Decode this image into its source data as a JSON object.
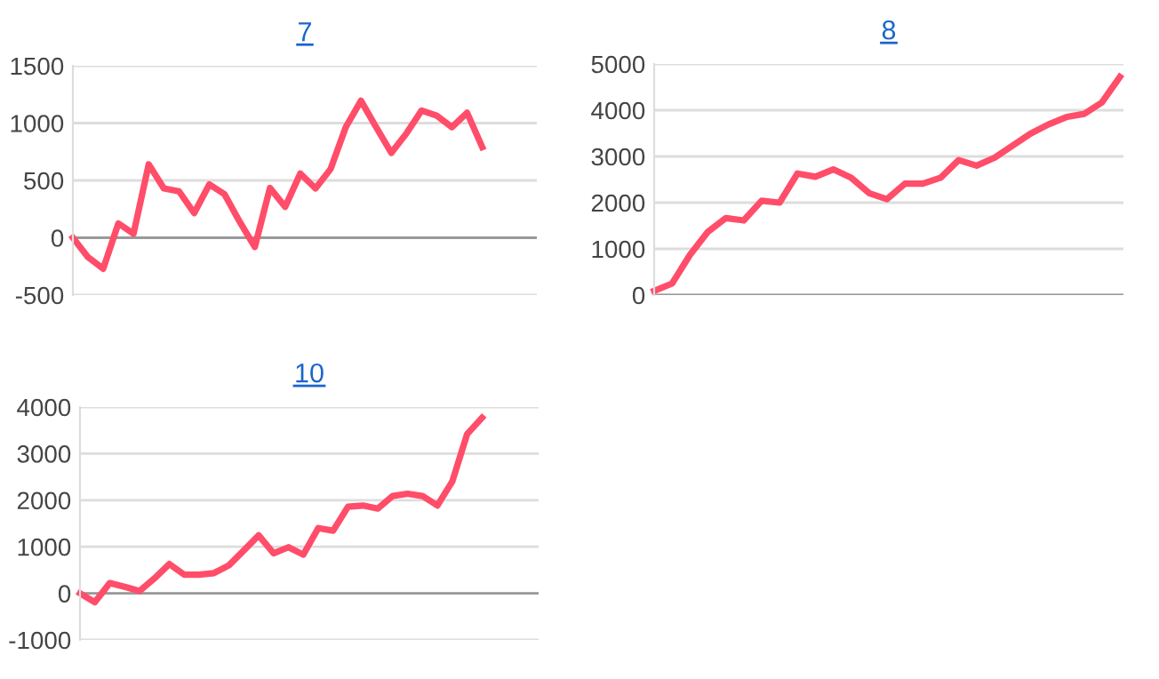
{
  "chart_data": [
    {
      "type": "line",
      "title": "7",
      "categories": [
        null,
        null,
        null,
        null,
        null,
        null,
        null,
        null,
        null,
        null,
        null,
        null,
        null,
        null,
        null,
        null,
        null,
        null,
        null,
        null,
        null,
        null,
        null,
        null,
        null,
        null,
        null,
        null
      ],
      "series": [
        {
          "color": "#ff4d6a",
          "values": [
            0,
            -170,
            -270,
            125,
            35,
            640,
            430,
            405,
            215,
            465,
            380,
            140,
            -80,
            435,
            270,
            560,
            430,
            600,
            965,
            1195,
            965,
            740,
            910,
            1110,
            1065,
            965,
            1090,
            790
          ]
        }
      ],
      "ylim": [
        -500,
        1500
      ],
      "yticks": [
        -500,
        0,
        500,
        1000,
        1500
      ],
      "grid": "y",
      "tick_labels": "y",
      "marker": "none",
      "line_style": "solid"
    },
    {
      "type": "line",
      "title": "8",
      "categories": [
        null,
        null,
        null,
        null,
        null,
        null,
        null,
        null,
        null,
        null,
        null,
        null,
        null,
        null,
        null,
        null,
        null,
        null,
        null,
        null,
        null,
        null,
        null,
        null,
        null,
        null,
        null
      ],
      "series": [
        {
          "color": "#ff4d6a",
          "values": [
            90,
            250,
            870,
            1370,
            1665,
            1615,
            2040,
            2000,
            2630,
            2560,
            2720,
            2540,
            2205,
            2075,
            2410,
            2410,
            2540,
            2920,
            2800,
            2970,
            3230,
            3490,
            3690,
            3850,
            3920,
            4170,
            4720
          ]
        }
      ],
      "ylim": [
        0,
        5000
      ],
      "yticks": [
        0,
        1000,
        2000,
        3000,
        4000,
        5000
      ],
      "grid": "y",
      "tick_labels": "y",
      "marker": "none",
      "line_style": "solid"
    },
    {
      "type": "line",
      "title": "10",
      "categories": [
        null,
        null,
        null,
        null,
        null,
        null,
        null,
        null,
        null,
        null,
        null,
        null,
        null,
        null,
        null,
        null,
        null,
        null,
        null,
        null,
        null,
        null,
        null,
        null,
        null,
        null,
        null,
        null
      ],
      "series": [
        {
          "color": "#ff4d6a",
          "values": [
            0,
            -190,
            220,
            140,
            50,
            320,
            630,
            400,
            400,
            435,
            600,
            920,
            1245,
            860,
            990,
            830,
            1400,
            1345,
            1860,
            1885,
            1820,
            2090,
            2140,
            2090,
            1885,
            2400,
            3420,
            3770
          ]
        }
      ],
      "ylim": [
        -1000,
        4000
      ],
      "yticks": [
        -1000,
        0,
        1000,
        2000,
        3000,
        4000
      ],
      "grid": "y",
      "tick_labels": "y",
      "marker": "none",
      "line_style": "solid"
    }
  ]
}
